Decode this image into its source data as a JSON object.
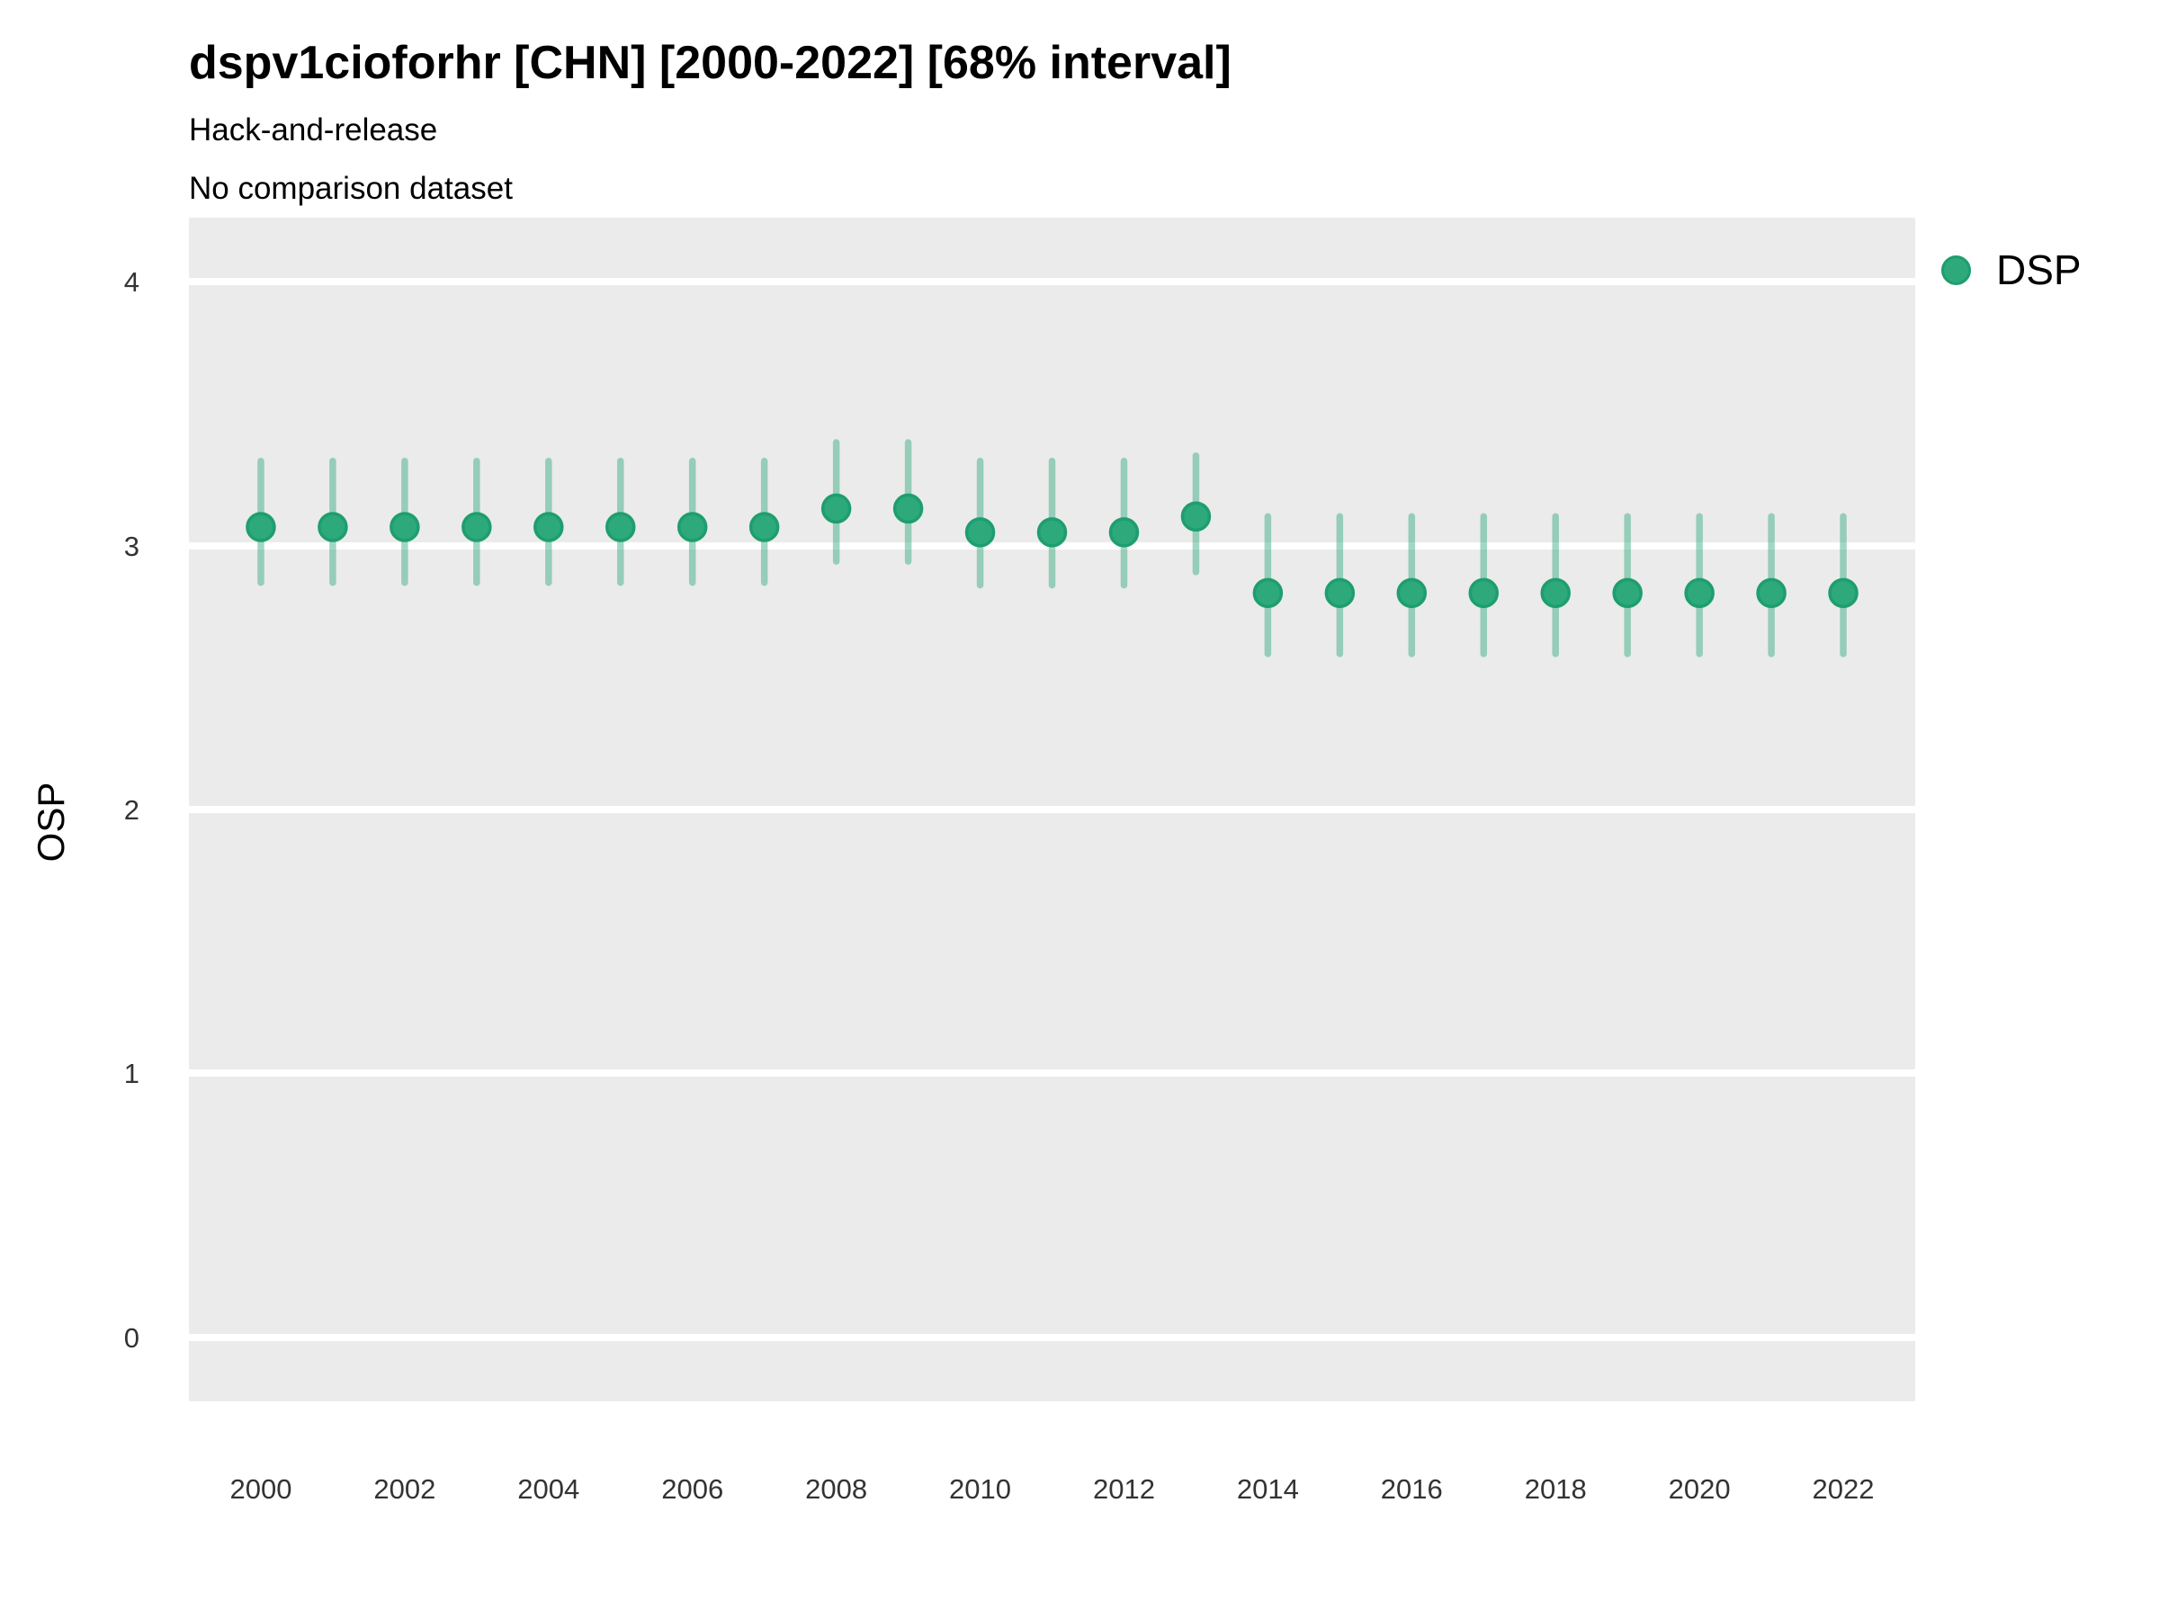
{
  "header": {
    "title": "dspv1cioforhr [CHN] [2000-2022] [68% interval]",
    "subtitle1": "Hack-and-release",
    "subtitle2": "No comparison dataset"
  },
  "y_axis": {
    "label": "OSP",
    "ticks": [
      "4",
      "3",
      "2",
      "1",
      "0"
    ],
    "tick_values": [
      4,
      3,
      2,
      1,
      0
    ]
  },
  "x_axis": {
    "tick_labels": [
      "2000",
      "2002",
      "2004",
      "2006",
      "2008",
      "2010",
      "2012",
      "2014",
      "2016",
      "2018",
      "2020",
      "2022"
    ],
    "tick_values": [
      2000,
      2002,
      2004,
      2006,
      2008,
      2010,
      2012,
      2014,
      2016,
      2018,
      2020,
      2022
    ]
  },
  "legend": {
    "label": "DSP",
    "position": "right-top"
  },
  "colors": {
    "point_fill": "#2DA97C",
    "point_stroke": "#1E9E6F",
    "interval": "rgba(45,169,124,0.45)",
    "panel_bg": "#EBEBEB",
    "gridline": "#FFFFFF",
    "tick_text": "#333333",
    "text": "#000000"
  },
  "chart_data": {
    "type": "scatter",
    "title": "dspv1cioforhr [CHN] [2000-2022] [68% interval]",
    "subtitle": [
      "Hack-and-release",
      "No comparison dataset"
    ],
    "xlabel": "",
    "ylabel": "OSP",
    "interval_note": "68% interval",
    "grid": "horizontal white gridlines on gray panel",
    "legend_position": "right-top",
    "xlim": [
      1999,
      2023
    ],
    "ylim": [
      -0.242,
      4.242
    ],
    "series": [
      {
        "name": "DSP",
        "x": [
          2000,
          2001,
          2002,
          2003,
          2004,
          2005,
          2006,
          2007,
          2008,
          2009,
          2010,
          2011,
          2012,
          2013,
          2014,
          2015,
          2016,
          2017,
          2018,
          2019,
          2020,
          2021,
          2022
        ],
        "y": [
          3.07,
          3.07,
          3.07,
          3.07,
          3.07,
          3.07,
          3.07,
          3.07,
          3.14,
          3.14,
          3.05,
          3.05,
          3.05,
          3.11,
          2.82,
          2.82,
          2.82,
          2.82,
          2.82,
          2.82,
          2.82,
          2.82,
          2.82
        ],
        "y_low": [
          2.86,
          2.86,
          2.86,
          2.86,
          2.86,
          2.86,
          2.86,
          2.86,
          2.94,
          2.94,
          2.85,
          2.85,
          2.85,
          2.9,
          2.59,
          2.59,
          2.59,
          2.59,
          2.59,
          2.59,
          2.59,
          2.59,
          2.59
        ],
        "y_high": [
          3.32,
          3.32,
          3.32,
          3.32,
          3.32,
          3.32,
          3.32,
          3.32,
          3.39,
          3.39,
          3.32,
          3.32,
          3.32,
          3.34,
          3.11,
          3.11,
          3.11,
          3.11,
          3.11,
          3.11,
          3.11,
          3.11,
          3.11
        ]
      }
    ]
  }
}
